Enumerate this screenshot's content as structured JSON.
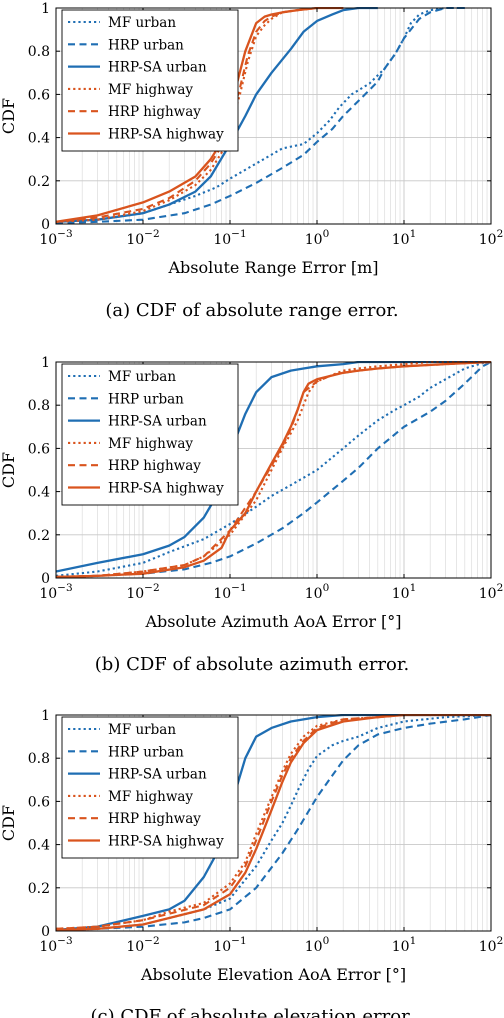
{
  "colors": {
    "urban": "#1f6eb3",
    "highway": "#d9541e"
  },
  "chart_data": [
    {
      "type": "line",
      "xscale": "log",
      "xlim": [
        0.001,
        100
      ],
      "ylim": [
        0,
        1
      ],
      "xticks": [
        "10^-3",
        "10^-2",
        "10^-1",
        "10^0",
        "10^1",
        "10^2"
      ],
      "yticks": [
        "0",
        "0.2",
        "0.4",
        "0.6",
        "0.8",
        "1"
      ],
      "xlabel": "Absolute Range Error [m]",
      "ylabel": "CDF",
      "caption": "(a) CDF of absolute range error.",
      "grid": true,
      "legend_position": "top-left",
      "series": [
        {
          "name": "MF urban",
          "style": "dotted",
          "color": "urban",
          "x": [
            0.001,
            0.003,
            0.01,
            0.02,
            0.04,
            0.07,
            0.1,
            0.2,
            0.4,
            0.7,
            1,
            1.4,
            1.8,
            2.5,
            4,
            6,
            8,
            10,
            12,
            15,
            20,
            30,
            50
          ],
          "y": [
            0.01,
            0.02,
            0.05,
            0.09,
            0.13,
            0.17,
            0.21,
            0.28,
            0.35,
            0.37,
            0.42,
            0.48,
            0.54,
            0.6,
            0.65,
            0.72,
            0.79,
            0.86,
            0.93,
            0.97,
            0.99,
            1,
            1
          ]
        },
        {
          "name": "HRP urban",
          "style": "dashed",
          "color": "urban",
          "x": [
            0.001,
            0.003,
            0.01,
            0.03,
            0.06,
            0.1,
            0.2,
            0.4,
            0.7,
            1,
            1.5,
            2,
            3,
            4,
            5,
            6,
            8,
            10,
            15,
            20,
            30,
            50
          ],
          "y": [
            0.005,
            0.01,
            0.02,
            0.05,
            0.09,
            0.13,
            0.19,
            0.26,
            0.32,
            0.38,
            0.44,
            0.5,
            0.57,
            0.62,
            0.66,
            0.72,
            0.79,
            0.86,
            0.95,
            0.98,
            1,
            1
          ]
        },
        {
          "name": "HRP-SA urban",
          "style": "solid",
          "color": "urban",
          "x": [
            0.001,
            0.003,
            0.01,
            0.02,
            0.04,
            0.06,
            0.1,
            0.15,
            0.2,
            0.3,
            0.5,
            0.7,
            1,
            1.5,
            2,
            3,
            5
          ],
          "y": [
            0.01,
            0.02,
            0.05,
            0.09,
            0.15,
            0.22,
            0.37,
            0.5,
            0.6,
            0.7,
            0.81,
            0.89,
            0.94,
            0.97,
            0.99,
            1,
            1
          ]
        },
        {
          "name": "MF highway",
          "style": "dotted",
          "color": "highway",
          "x": [
            0.001,
            0.003,
            0.01,
            0.02,
            0.04,
            0.06,
            0.08,
            0.1,
            0.13,
            0.16,
            0.2,
            0.25,
            0.3,
            0.4,
            0.6,
            1,
            2
          ],
          "y": [
            0.01,
            0.02,
            0.06,
            0.11,
            0.18,
            0.25,
            0.33,
            0.44,
            0.6,
            0.75,
            0.87,
            0.92,
            0.95,
            0.98,
            0.99,
            1,
            1
          ]
        },
        {
          "name": "HRP highway",
          "style": "dashed",
          "color": "highway",
          "x": [
            0.001,
            0.003,
            0.01,
            0.02,
            0.04,
            0.06,
            0.08,
            0.1,
            0.13,
            0.16,
            0.2,
            0.25,
            0.3,
            0.4,
            0.6,
            1,
            2
          ],
          "y": [
            0.01,
            0.03,
            0.07,
            0.12,
            0.2,
            0.28,
            0.36,
            0.47,
            0.63,
            0.78,
            0.89,
            0.94,
            0.96,
            0.98,
            0.99,
            1,
            1
          ]
        },
        {
          "name": "HRP-SA highway",
          "style": "solid",
          "color": "highway",
          "x": [
            0.001,
            0.003,
            0.01,
            0.02,
            0.04,
            0.06,
            0.08,
            0.1,
            0.12,
            0.15,
            0.2,
            0.25,
            0.3,
            0.4,
            0.6,
            1,
            2
          ],
          "y": [
            0.01,
            0.04,
            0.1,
            0.15,
            0.22,
            0.3,
            0.38,
            0.5,
            0.65,
            0.8,
            0.93,
            0.96,
            0.97,
            0.98,
            0.99,
            1,
            1
          ]
        }
      ]
    },
    {
      "type": "line",
      "xscale": "log",
      "xlim": [
        0.001,
        100
      ],
      "ylim": [
        0,
        1
      ],
      "xticks": [
        "10^-3",
        "10^-2",
        "10^-1",
        "10^0",
        "10^1",
        "10^2"
      ],
      "yticks": [
        "0",
        "0.2",
        "0.4",
        "0.6",
        "0.8",
        "1"
      ],
      "xlabel": "Absolute Azimuth AoA Error [°]",
      "ylabel": "CDF",
      "caption": "(b) CDF of absolute azimuth error.",
      "grid": true,
      "legend_position": "top-left",
      "series": [
        {
          "name": "MF urban",
          "style": "dotted",
          "color": "urban",
          "x": [
            0.001,
            0.003,
            0.01,
            0.02,
            0.05,
            0.1,
            0.2,
            0.3,
            0.5,
            1,
            2,
            3,
            5,
            8,
            10,
            15,
            20,
            30,
            50,
            80,
            100
          ],
          "y": [
            0.01,
            0.03,
            0.07,
            0.12,
            0.18,
            0.25,
            0.33,
            0.38,
            0.43,
            0.5,
            0.6,
            0.66,
            0.73,
            0.78,
            0.8,
            0.84,
            0.88,
            0.92,
            0.97,
            0.995,
            1
          ]
        },
        {
          "name": "HRP urban",
          "style": "dashed",
          "color": "urban",
          "x": [
            0.001,
            0.003,
            0.01,
            0.03,
            0.06,
            0.1,
            0.2,
            0.4,
            0.7,
            1,
            2,
            3,
            5,
            10,
            20,
            30,
            50,
            80,
            100
          ],
          "y": [
            0.005,
            0.01,
            0.02,
            0.04,
            0.07,
            0.1,
            0.16,
            0.23,
            0.3,
            0.35,
            0.45,
            0.51,
            0.6,
            0.7,
            0.77,
            0.82,
            0.9,
            0.98,
            1
          ]
        },
        {
          "name": "HRP-SA urban",
          "style": "solid",
          "color": "urban",
          "x": [
            0.001,
            0.003,
            0.01,
            0.02,
            0.03,
            0.05,
            0.08,
            0.1,
            0.12,
            0.15,
            0.2,
            0.3,
            0.5,
            0.7,
            1,
            2,
            3,
            10,
            100
          ],
          "y": [
            0.03,
            0.07,
            0.11,
            0.15,
            0.19,
            0.28,
            0.42,
            0.6,
            0.66,
            0.76,
            0.86,
            0.93,
            0.96,
            0.97,
            0.98,
            0.99,
            1,
            1,
            1
          ]
        },
        {
          "name": "MF highway",
          "style": "dotted",
          "color": "highway",
          "x": [
            0.001,
            0.003,
            0.01,
            0.03,
            0.05,
            0.1,
            0.2,
            0.3,
            0.4,
            0.5,
            0.6,
            0.7,
            0.8,
            1,
            1.5,
            2,
            3,
            5,
            10,
            20,
            100
          ],
          "y": [
            0.005,
            0.01,
            0.03,
            0.06,
            0.1,
            0.2,
            0.36,
            0.5,
            0.6,
            0.67,
            0.73,
            0.8,
            0.86,
            0.91,
            0.94,
            0.96,
            0.97,
            0.98,
            0.99,
            1,
            1
          ]
        },
        {
          "name": "HRP highway",
          "style": "dashed",
          "color": "highway",
          "x": [
            0.001,
            0.003,
            0.01,
            0.03,
            0.05,
            0.1,
            0.2,
            0.3,
            0.4,
            0.5,
            0.6,
            0.7,
            1,
            1.5,
            2,
            3,
            5,
            10,
            30,
            100
          ],
          "y": [
            0.005,
            0.01,
            0.03,
            0.06,
            0.1,
            0.22,
            0.4,
            0.52,
            0.61,
            0.69,
            0.78,
            0.86,
            0.91,
            0.94,
            0.95,
            0.96,
            0.97,
            0.98,
            0.99,
            1
          ]
        },
        {
          "name": "HRP-SA highway",
          "style": "solid",
          "color": "highway",
          "x": [
            0.001,
            0.003,
            0.01,
            0.03,
            0.05,
            0.08,
            0.1,
            0.15,
            0.2,
            0.3,
            0.4,
            0.5,
            0.6,
            0.7,
            0.8,
            1,
            2,
            3,
            5,
            10,
            30,
            100
          ],
          "y": [
            0.005,
            0.01,
            0.02,
            0.05,
            0.08,
            0.14,
            0.22,
            0.3,
            0.4,
            0.53,
            0.62,
            0.7,
            0.78,
            0.86,
            0.9,
            0.92,
            0.95,
            0.96,
            0.97,
            0.98,
            0.99,
            1
          ]
        }
      ]
    },
    {
      "type": "line",
      "xscale": "log",
      "xlim": [
        0.001,
        100
      ],
      "ylim": [
        0,
        1
      ],
      "xticks": [
        "10^-3",
        "10^-2",
        "10^-1",
        "10^0",
        "10^1",
        "10^2"
      ],
      "yticks": [
        "0",
        "0.2",
        "0.4",
        "0.6",
        "0.8",
        "1"
      ],
      "xlabel": "Absolute Elevation AoA Error [°]",
      "ylabel": "CDF",
      "caption": "(c) CDF of absolute elevation error.",
      "grid": true,
      "legend_position": "top-left",
      "series": [
        {
          "name": "MF urban",
          "style": "dotted",
          "color": "urban",
          "x": [
            0.001,
            0.003,
            0.01,
            0.02,
            0.05,
            0.1,
            0.2,
            0.3,
            0.4,
            0.5,
            0.6,
            0.8,
            1,
            1.5,
            2,
            3,
            5,
            10,
            30,
            100
          ],
          "y": [
            0.005,
            0.01,
            0.03,
            0.06,
            0.1,
            0.15,
            0.3,
            0.42,
            0.5,
            0.58,
            0.65,
            0.75,
            0.81,
            0.86,
            0.88,
            0.9,
            0.94,
            0.97,
            0.99,
            1
          ]
        },
        {
          "name": "HRP urban",
          "style": "dashed",
          "color": "urban",
          "x": [
            0.001,
            0.003,
            0.01,
            0.03,
            0.05,
            0.1,
            0.2,
            0.4,
            0.6,
            1,
            1.5,
            2,
            3,
            5,
            10,
            20,
            50,
            100
          ],
          "y": [
            0.005,
            0.01,
            0.02,
            0.04,
            0.06,
            0.1,
            0.2,
            0.36,
            0.47,
            0.62,
            0.72,
            0.79,
            0.86,
            0.91,
            0.94,
            0.96,
            0.98,
            1
          ]
        },
        {
          "name": "HRP-SA urban",
          "style": "solid",
          "color": "urban",
          "x": [
            0.001,
            0.003,
            0.01,
            0.02,
            0.03,
            0.05,
            0.08,
            0.1,
            0.12,
            0.15,
            0.2,
            0.3,
            0.5,
            1,
            2,
            5,
            10,
            100
          ],
          "y": [
            0.005,
            0.02,
            0.07,
            0.1,
            0.14,
            0.25,
            0.4,
            0.53,
            0.67,
            0.8,
            0.9,
            0.94,
            0.97,
            0.99,
            1,
            1,
            1,
            1
          ]
        },
        {
          "name": "MF highway",
          "style": "dotted",
          "color": "highway",
          "x": [
            0.001,
            0.003,
            0.01,
            0.02,
            0.05,
            0.1,
            0.15,
            0.2,
            0.3,
            0.4,
            0.5,
            0.7,
            1,
            2,
            5,
            10,
            100
          ],
          "y": [
            0.01,
            0.02,
            0.05,
            0.09,
            0.13,
            0.22,
            0.32,
            0.45,
            0.62,
            0.74,
            0.82,
            0.9,
            0.95,
            0.98,
            0.99,
            1,
            1
          ]
        },
        {
          "name": "HRP highway",
          "style": "dashed",
          "color": "highway",
          "x": [
            0.001,
            0.003,
            0.01,
            0.02,
            0.05,
            0.1,
            0.15,
            0.2,
            0.3,
            0.4,
            0.5,
            0.7,
            1,
            2,
            5,
            10,
            100
          ],
          "y": [
            0.01,
            0.02,
            0.05,
            0.08,
            0.12,
            0.2,
            0.3,
            0.42,
            0.6,
            0.72,
            0.8,
            0.88,
            0.94,
            0.98,
            0.99,
            1,
            1
          ]
        },
        {
          "name": "HRP-SA highway",
          "style": "solid",
          "color": "highway",
          "x": [
            0.001,
            0.003,
            0.01,
            0.02,
            0.05,
            0.1,
            0.15,
            0.2,
            0.3,
            0.4,
            0.5,
            0.7,
            1,
            2,
            5,
            10,
            100
          ],
          "y": [
            0.005,
            0.01,
            0.03,
            0.06,
            0.1,
            0.17,
            0.27,
            0.38,
            0.56,
            0.69,
            0.78,
            0.87,
            0.93,
            0.97,
            0.99,
            1,
            1
          ]
        }
      ]
    }
  ]
}
